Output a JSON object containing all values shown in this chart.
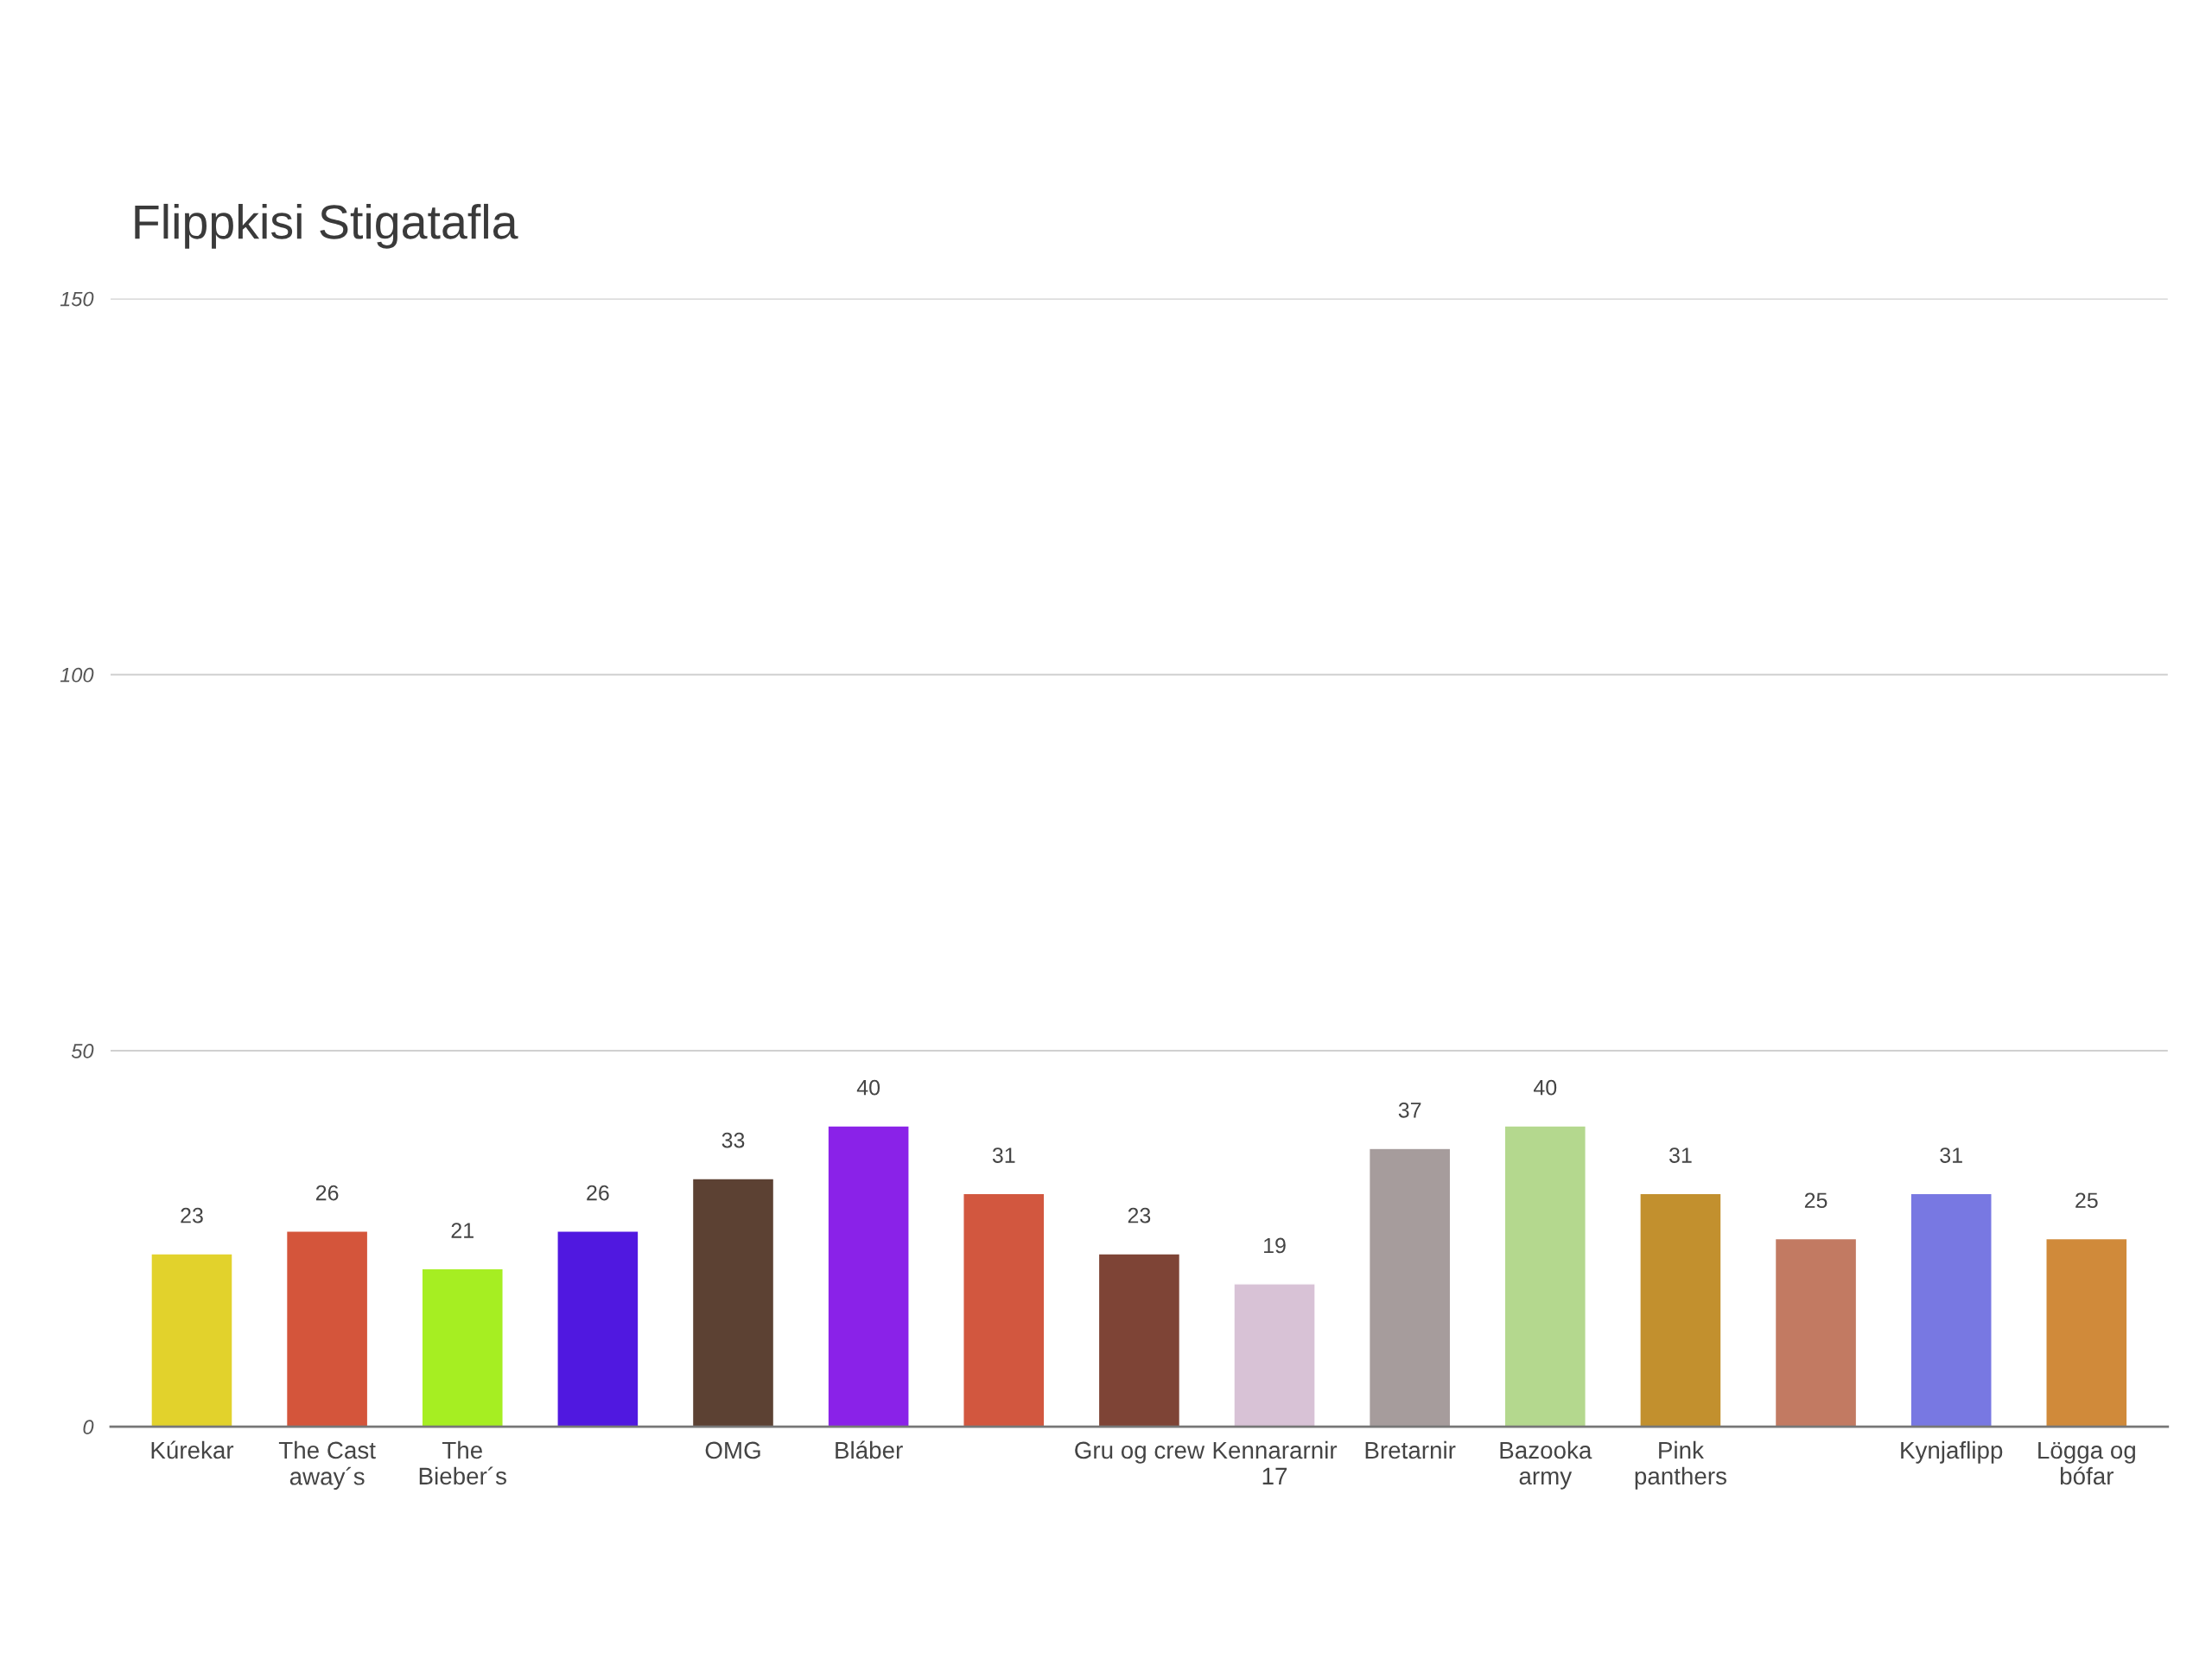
{
  "chart_data": {
    "type": "bar",
    "title": "Flippkisi Stigatafla",
    "categories": [
      "Kúrekar",
      "The Cast away´s",
      "The Bieber´s",
      null,
      "OMG",
      "Bláber",
      null,
      "Gru og crew",
      "Kennararnir 17",
      "Bretarnir",
      "Bazooka army",
      "Pink panthers",
      null,
      "Kynjaflipp",
      "Lögga og bófar"
    ],
    "values": [
      23,
      26,
      21,
      26,
      33,
      40,
      31,
      23,
      19,
      37,
      40,
      31,
      25,
      31,
      25
    ],
    "colors": [
      "#e2d22c",
      "#d4553b",
      "#a6ee22",
      "#5018e0",
      "#5c4133",
      "#8a22e8",
      "#d2573f",
      "#7e4436",
      "#d8c2d6",
      "#a69c9c",
      "#b4d88e",
      "#c2902e",
      "#c27a62",
      "#7878e2",
      "#d08a3a"
    ],
    "ylim": [
      0,
      150
    ],
    "yticks": [
      0,
      50,
      100,
      150
    ],
    "grid": "y",
    "data_labels": true
  }
}
